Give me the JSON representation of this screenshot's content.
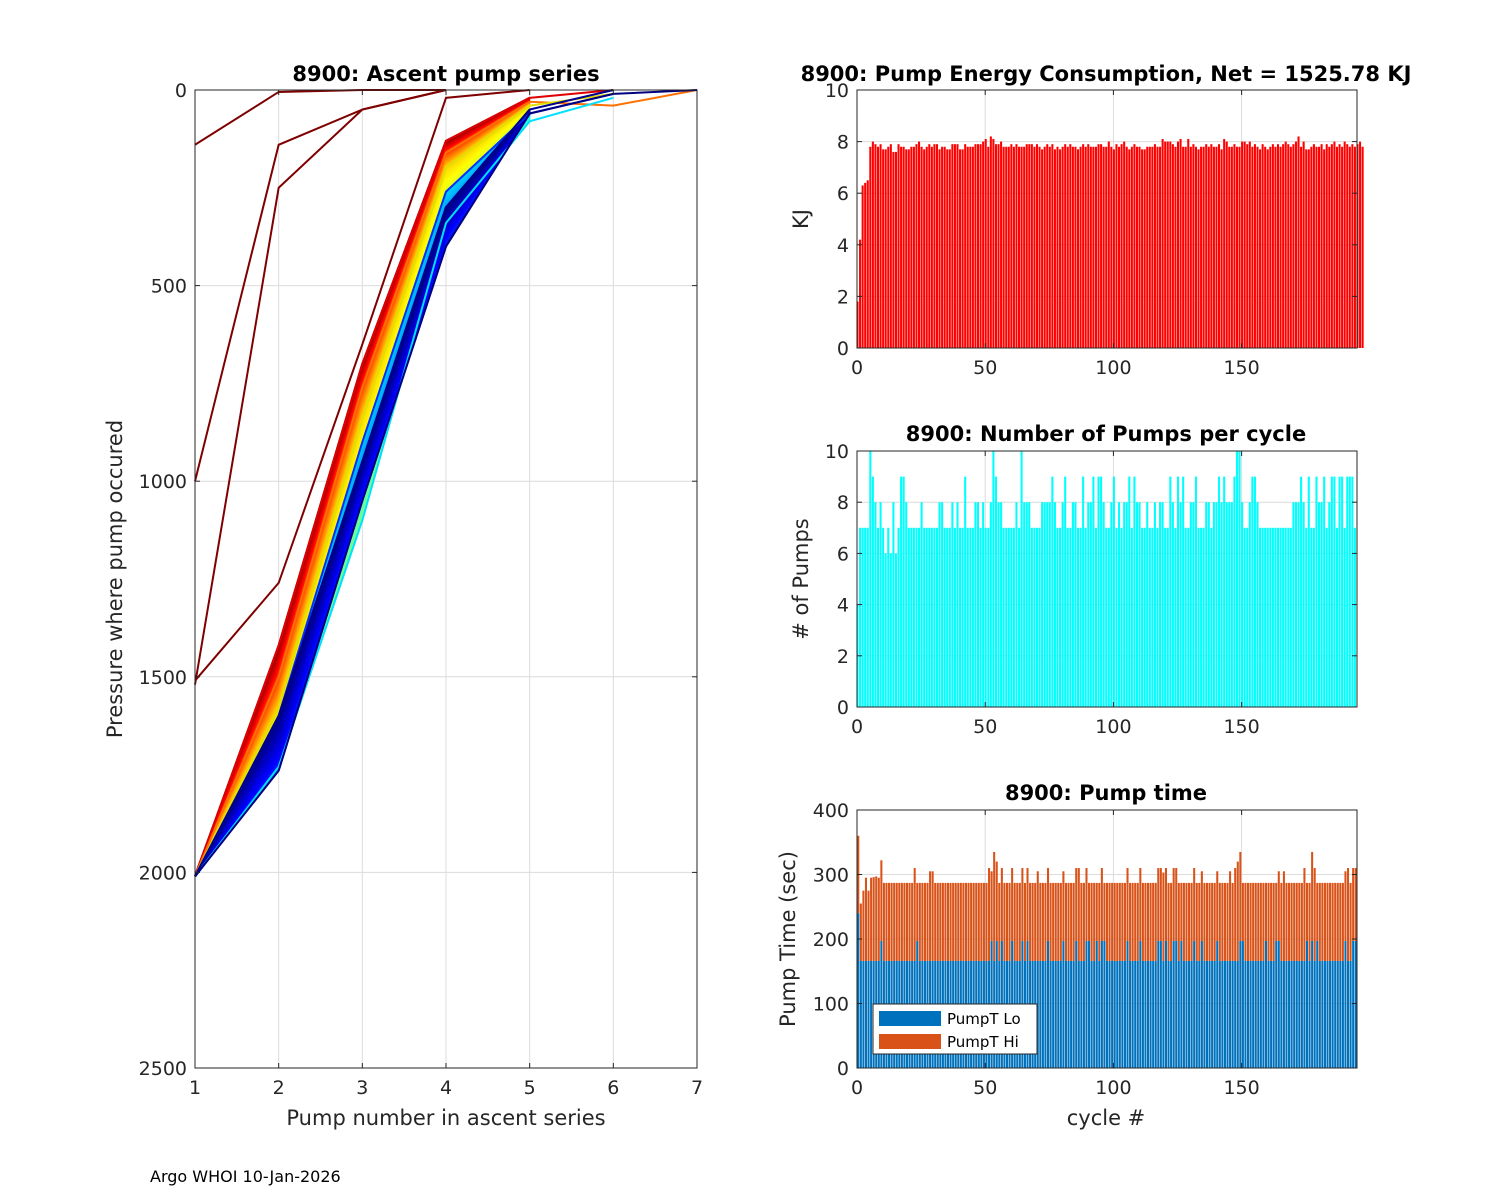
{
  "footer": "Argo WHOI 10-Jan-2026",
  "chart_data": [
    {
      "type": "line",
      "title": "8900: Ascent pump series",
      "xlabel": "Pump number in ascent series",
      "ylabel": "Pressure where pump occured",
      "xlim": [
        1,
        7
      ],
      "ylim": [
        0,
        2500
      ],
      "y_reversed": true,
      "xticks": [
        "1",
        "2",
        "3",
        "4",
        "5",
        "6",
        "7"
      ],
      "yticks": [
        "0",
        "500",
        "1000",
        "1500",
        "2000",
        "2500"
      ],
      "grid": true,
      "colormap": "jet (early cycles dark red, later cycles dark blue)",
      "representative_series": [
        {
          "name": "cycle-early-a",
          "color": "#7f0000",
          "x": [
            1,
            2,
            3,
            4
          ],
          "y": [
            140,
            5,
            0,
            0
          ]
        },
        {
          "name": "cycle-early-b",
          "color": "#7f0000",
          "x": [
            1,
            2,
            3,
            4
          ],
          "y": [
            1000,
            140,
            50,
            0
          ]
        },
        {
          "name": "cycle-early-c",
          "color": "#7f0000",
          "x": [
            1,
            2,
            3,
            4
          ],
          "y": [
            1520,
            250,
            50,
            0
          ]
        },
        {
          "name": "cycle-early-d",
          "color": "#7f0000",
          "x": [
            1,
            2,
            3,
            4,
            5
          ],
          "y": [
            1510,
            1260,
            650,
            20,
            0
          ]
        },
        {
          "name": "cycle-red",
          "color": "#e00000",
          "x": [
            1,
            2,
            3,
            4,
            5,
            6
          ],
          "y": [
            2010,
            1420,
            700,
            130,
            20,
            0
          ]
        },
        {
          "name": "cycle-orange",
          "color": "#ff7000",
          "x": [
            1,
            2,
            3,
            4,
            5,
            6,
            7
          ],
          "y": [
            2010,
            1500,
            760,
            160,
            30,
            40,
            0
          ]
        },
        {
          "name": "cycle-yellow",
          "color": "#e0e000",
          "x": [
            1,
            2,
            3,
            4,
            5,
            6
          ],
          "y": [
            2010,
            1580,
            840,
            200,
            40,
            10
          ]
        },
        {
          "name": "cycle-cyan",
          "color": "#00e0ff",
          "x": [
            1,
            2,
            3,
            4,
            5,
            6
          ],
          "y": [
            2010,
            1730,
            1100,
            340,
            80,
            20
          ]
        },
        {
          "name": "cycle-blue",
          "color": "#0030ff",
          "x": [
            1,
            2,
            3,
            4,
            5,
            6
          ],
          "y": [
            2010,
            1600,
            900,
            260,
            60,
            10
          ]
        },
        {
          "name": "cycle-late-a",
          "color": "#00007f",
          "x": [
            1,
            2,
            3,
            4,
            5,
            6,
            7
          ],
          "y": [
            2010,
            1740,
            1050,
            400,
            60,
            10,
            0
          ]
        },
        {
          "name": "cycle-late-b",
          "color": "#00008f",
          "x": [
            1,
            2,
            3,
            4,
            5,
            6
          ],
          "y": [
            2010,
            1600,
            950,
            300,
            50,
            0
          ]
        }
      ]
    },
    {
      "type": "bar",
      "title": "8900: Pump Energy Consumption,  Net = 1525.78 KJ",
      "xlabel": "",
      "ylabel": "KJ",
      "xlim": [
        0,
        195
      ],
      "ylim": [
        0,
        10
      ],
      "xticks": [
        "0",
        "50",
        "100",
        "150"
      ],
      "yticks": [
        "0",
        "2",
        "4",
        "6",
        "8",
        "10"
      ],
      "grid": true,
      "color": "#ff0000",
      "x_start": 0,
      "values": [
        1.8,
        4.2,
        6.3,
        6.4,
        6.5,
        7.8,
        8.0,
        7.9,
        7.8,
        7.9,
        7.7,
        7.7,
        7.8,
        7.9,
        7.6,
        7.6,
        7.9,
        7.8,
        7.8,
        7.7,
        7.7,
        7.8,
        7.8,
        7.9,
        8.0,
        7.8,
        7.7,
        7.8,
        7.9,
        7.8,
        7.9,
        7.9,
        7.7,
        7.8,
        7.8,
        7.7,
        7.7,
        7.9,
        7.9,
        7.9,
        7.7,
        7.7,
        7.9,
        7.8,
        7.8,
        7.8,
        7.9,
        7.9,
        7.9,
        8.0,
        8.1,
        7.8,
        8.2,
        8.1,
        7.9,
        7.9,
        8.0,
        7.8,
        7.8,
        7.8,
        7.9,
        7.8,
        7.9,
        7.8,
        7.8,
        7.8,
        7.9,
        7.9,
        7.9,
        7.8,
        7.9,
        7.8,
        7.7,
        7.8,
        7.9,
        7.8,
        7.9,
        7.7,
        7.8,
        7.7,
        7.8,
        7.9,
        7.8,
        7.9,
        7.8,
        7.8,
        7.7,
        7.8,
        7.9,
        7.8,
        7.9,
        7.8,
        7.8,
        7.8,
        7.9,
        7.9,
        7.8,
        7.8,
        8.0,
        7.8,
        7.7,
        7.9,
        7.8,
        7.9,
        8.0,
        7.8,
        7.7,
        7.8,
        7.9,
        7.8,
        7.8,
        7.7,
        7.7,
        7.8,
        7.8,
        7.8,
        7.9,
        7.8,
        7.8,
        8.1,
        8.0,
        8.0,
        8.0,
        7.9,
        7.8,
        8.0,
        8.1,
        7.8,
        7.8,
        8.1,
        7.8,
        7.9,
        7.8,
        7.7,
        7.8,
        7.8,
        7.9,
        7.8,
        7.9,
        7.8,
        7.8,
        7.9,
        7.7,
        8.1,
        8.0,
        7.8,
        7.8,
        7.9,
        7.8,
        7.8,
        8.0,
        8.0,
        7.9,
        8.0,
        7.8,
        7.9,
        7.8,
        7.7,
        7.9,
        7.8,
        7.7,
        7.8,
        7.9,
        7.8,
        7.9,
        7.8,
        7.9,
        8.0,
        7.9,
        7.8,
        7.9,
        8.0,
        8.2,
        7.8,
        8.0,
        7.7,
        7.7,
        7.8,
        7.9,
        7.8,
        7.8,
        7.9,
        7.7,
        7.9,
        7.8,
        7.9,
        8.0,
        7.8,
        7.9,
        7.8,
        8.0,
        7.9,
        7.8,
        7.9,
        7.8,
        7.9,
        8.0,
        7.8
      ]
    },
    {
      "type": "bar",
      "title": "8900: Number of Pumps per cycle",
      "xlabel": "",
      "ylabel": "# of Pumps",
      "xlim": [
        0,
        195
      ],
      "ylim": [
        0,
        10
      ],
      "xticks": [
        "0",
        "50",
        "100",
        "150"
      ],
      "yticks": [
        "0",
        "2",
        "4",
        "6",
        "8",
        "10"
      ],
      "grid": true,
      "color": "#00ffff",
      "x_start": 0,
      "values": [
        4,
        7,
        7,
        7,
        7,
        10,
        9,
        8,
        7,
        8,
        7,
        6,
        7,
        6,
        8,
        6,
        7,
        9,
        9,
        8,
        7,
        7,
        7,
        7,
        7,
        8,
        7,
        7,
        7,
        7,
        7,
        7,
        8,
        8,
        7,
        7,
        7,
        8,
        7,
        8,
        7,
        7,
        9,
        7,
        7,
        7,
        8,
        8,
        7,
        8,
        7,
        7,
        8,
        10,
        9,
        8,
        8,
        7,
        7,
        7,
        7,
        7,
        8,
        7,
        10,
        8,
        8,
        8,
        7,
        7,
        7,
        7,
        8,
        8,
        8,
        8,
        9,
        8,
        7,
        7,
        8,
        9,
        7,
        7,
        8,
        8,
        7,
        7,
        9,
        7,
        8,
        8,
        9,
        7,
        9,
        9,
        8,
        7,
        7,
        8,
        9,
        7,
        8,
        7,
        8,
        8,
        9,
        7,
        9,
        8,
        8,
        7,
        7,
        8,
        7,
        7,
        8,
        7,
        8,
        8,
        7,
        7,
        9,
        8,
        7,
        9,
        8,
        9,
        7,
        7,
        8,
        8,
        9,
        7,
        7,
        7,
        8,
        8,
        7,
        8,
        8,
        9,
        8,
        9,
        8,
        8,
        8,
        9,
        10,
        10,
        8,
        7,
        7,
        8,
        9,
        9,
        8,
        7,
        7,
        7,
        7,
        7,
        7,
        7,
        7,
        7,
        7,
        7,
        7,
        7,
        8,
        8,
        8,
        9,
        8,
        7,
        9,
        7,
        7,
        9,
        8,
        8,
        9,
        7,
        8,
        9,
        9,
        7,
        9,
        9,
        7,
        9,
        9,
        9,
        7
      ]
    },
    {
      "type": "bar",
      "stacked": true,
      "title": "8900: Pump time",
      "xlabel": "cycle #",
      "ylabel": "Pump Time (sec)",
      "xlim": [
        0,
        195
      ],
      "ylim": [
        0,
        400
      ],
      "xticks": [
        "0",
        "50",
        "100",
        "150"
      ],
      "yticks": [
        "0",
        "100",
        "200",
        "300",
        "400"
      ],
      "grid": true,
      "legend": {
        "position": "bottom-left",
        "entries": [
          "PumpT Lo",
          "PumpT Hi"
        ]
      },
      "x_start": 0,
      "series": [
        {
          "name": "PumpT Lo",
          "color": "#0072bd",
          "pattern": {
            "base": 166,
            "alt": 197,
            "alt_cycles": [
              9,
              23,
              52,
              54,
              56,
              60,
              64,
              66,
              74,
              80,
              85,
              89,
              90,
              93,
              95,
              96,
              105,
              110,
              117,
              118,
              120,
              123,
              124,
              126,
              131,
              134,
              140,
              149,
              150,
              159,
              163,
              164,
              175,
              177,
              179,
              190,
              193,
              194
            ],
            "first": 240
          }
        },
        {
          "name": "PumpT Hi",
          "total_pattern": {
            "base": 287,
            "peaks": {
              "0": 360,
              "1": 255,
              "2": 275,
              "3": 295,
              "4": 275,
              "5": 295,
              "6": 296,
              "7": 297,
              "8": 295,
              "9": 322,
              "22": 310,
              "28": 305,
              "29": 305,
              "51": 310,
              "52": 305,
              "53": 335,
              "54": 320,
              "56": 310,
              "60": 310,
              "64": 310,
              "66": 310,
              "70": 305,
              "74": 310,
              "80": 305,
              "85": 310,
              "86": 310,
              "89": 310,
              "95": 310,
              "105": 310,
              "110": 310,
              "117": 310,
              "118": 310,
              "119": 303,
              "120": 310,
              "123": 310,
              "124": 310,
              "131": 310,
              "134": 305,
              "140": 305,
              "145": 305,
              "147": 310,
              "148": 320,
              "149": 335,
              "164": 305,
              "166": 305,
              "174": 310,
              "177": 335,
              "178": 310,
              "190": 305,
              "191": 310,
              "193": 310,
              "194": 310
            }
          },
          "color": "#d95319"
        }
      ]
    }
  ]
}
